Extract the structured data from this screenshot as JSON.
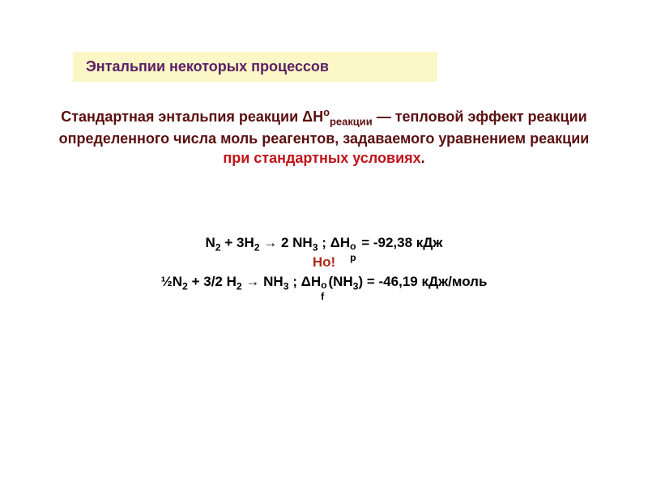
{
  "colors": {
    "title_bg": "#fbf7c6",
    "title_text": "#5b1e66",
    "body_text": "#5a0f0f",
    "highlight_text": "#c0141a",
    "eq_text": "#000000",
    "but_text": "#b0281a"
  },
  "fonts": {
    "title_size": 18,
    "body_size": 18,
    "eq_size": 17
  },
  "title": "Энтальпии некоторых процессов",
  "definition": {
    "part1": "Стандартная энтальпия реакции ΔH",
    "sup1": "о",
    "sub1": "реакции",
    "part2": " — тепловой эффект реакции определенного числа моль реагентов, задаваемого уравнением реакции ",
    "highlight": "при стандартных условиях",
    "part3": "."
  },
  "equations": {
    "eq1": {
      "lhs_a": "N",
      "lhs_a_sub": "2",
      "plus": " + 3H",
      "lhs_b_sub": "2",
      "arrow": " → 2 NH",
      "rhs_sub": "3",
      "sep": " ; ",
      "dH": "ΔH",
      "dH_sup": "о",
      "dH_sub": "р",
      "val": " = -92,38 кДж"
    },
    "but": "Но!",
    "eq2": {
      "half": "½N",
      "a_sub": "2",
      "plus": " + 3/2 H",
      "b_sub": "2",
      "arrow": " → NH",
      "c_sub": "3",
      "sep": " ; ",
      "dH": "ΔH",
      "dH_sup": "о",
      "dH_sub": "f",
      "arg": "(NH",
      "arg_sub": "3",
      "val": ") = -46,19 кДж/моль"
    }
  }
}
